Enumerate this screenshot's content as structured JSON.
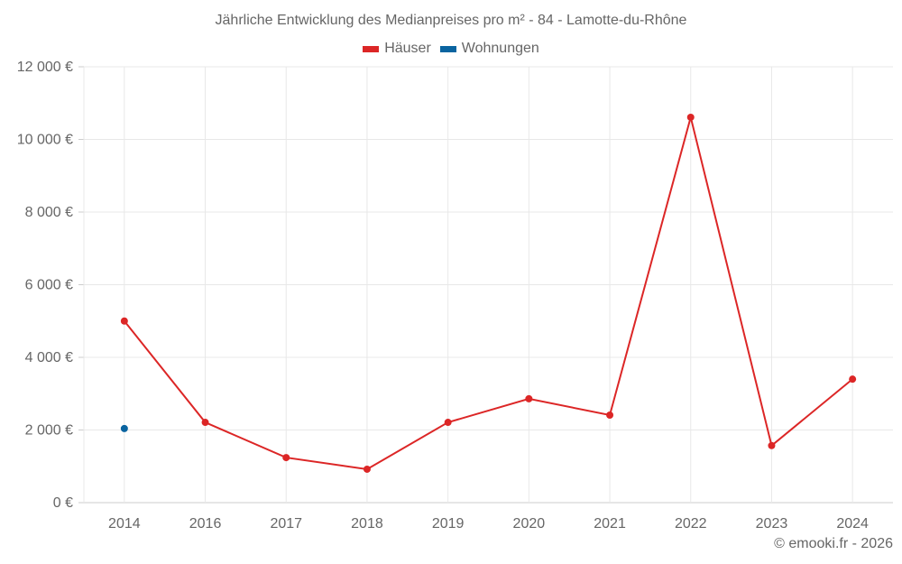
{
  "title": "Jährliche Entwicklung des Medianpreises pro m² - 84 - Lamotte-du-Rhône",
  "legend": [
    {
      "label": "Häuser",
      "color": "#dc2626"
    },
    {
      "label": "Wohnungen",
      "color": "#0a64a0"
    }
  ],
  "credit": "© emooki.fr - 2026",
  "chart_data": {
    "type": "line",
    "title": "Jährliche Entwicklung des Medianpreises pro m² - 84 - Lamotte-du-Rhône",
    "xlabel": "",
    "ylabel": "",
    "categories": [
      "2014",
      "2016",
      "2017",
      "2018",
      "2019",
      "2020",
      "2021",
      "2022",
      "2023",
      "2024"
    ],
    "series": [
      {
        "name": "Häuser",
        "color": "#dc2626",
        "values": [
          5000,
          2210,
          1240,
          920,
          2210,
          2860,
          2410,
          10610,
          1570,
          3400
        ]
      },
      {
        "name": "Wohnungen",
        "color": "#0a64a0",
        "values": [
          2040,
          null,
          null,
          null,
          null,
          null,
          null,
          null,
          null,
          null
        ]
      }
    ],
    "yticks": [
      "0 €",
      "2 000 €",
      "4 000 €",
      "6 000 €",
      "8 000 €",
      "10 000 €",
      "12 000 €"
    ],
    "ylim": [
      0,
      12000
    ],
    "grid": true,
    "legend_position": "top"
  }
}
